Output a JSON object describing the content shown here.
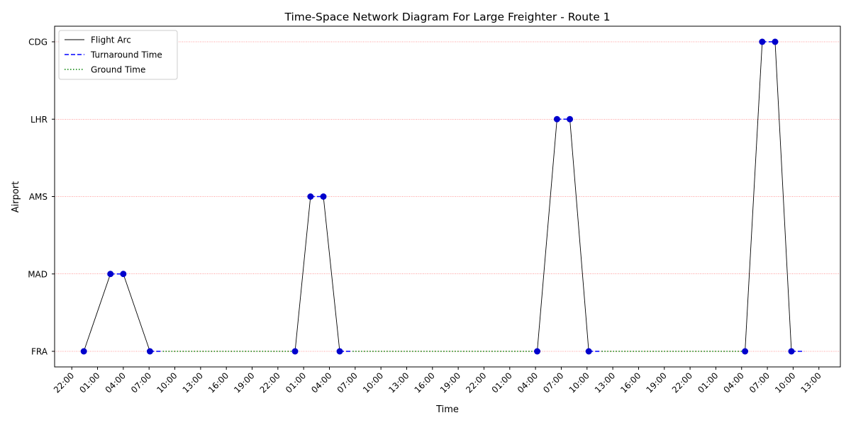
{
  "chart_data": {
    "type": "line",
    "title": "Time-Space Network Diagram For Large Freighter - Route 1",
    "xlabel": "Time",
    "ylabel": "Airport",
    "airports": [
      "FRA",
      "MAD",
      "AMS",
      "LHR",
      "CDG"
    ],
    "x_tick_labels": [
      "22:00",
      "01:00",
      "04:00",
      "07:00",
      "10:00",
      "13:00",
      "16:00",
      "19:00",
      "22:00",
      "01:00",
      "04:00",
      "07:00",
      "10:00",
      "13:00",
      "16:00",
      "19:00",
      "22:00",
      "01:00",
      "04:00",
      "07:00",
      "10:00",
      "13:00",
      "16:00",
      "19:00",
      "22:00",
      "01:00",
      "04:00",
      "07:00",
      "10:00",
      "13:00"
    ],
    "x_tick_hours": [
      0,
      3,
      6,
      9,
      12,
      15,
      18,
      21,
      24,
      27,
      30,
      33,
      36,
      39,
      42,
      45,
      48,
      51,
      54,
      57,
      60,
      63,
      66,
      69,
      72,
      75,
      78,
      81,
      84,
      87
    ],
    "xlim_hours": [
      -2.0,
      89.5
    ],
    "grid": "horizontal dotted red at airports",
    "legend": {
      "position": "top-left",
      "entries": [
        {
          "label": "Flight Arc",
          "style": "solid",
          "color": "#000000"
        },
        {
          "label": "Turnaround Time",
          "style": "dashed",
          "color": "#0000ff"
        },
        {
          "label": "Ground Time",
          "style": "dotted",
          "color": "#008000"
        }
      ]
    },
    "flight_arcs": [
      {
        "from": "FRA",
        "to": "MAD",
        "dep": 1.4,
        "arr": 4.5
      },
      {
        "from": "MAD",
        "to": "FRA",
        "dep": 6.0,
        "arr": 9.1
      },
      {
        "from": "FRA",
        "to": "AMS",
        "dep": 26.0,
        "arr": 27.8
      },
      {
        "from": "AMS",
        "to": "FRA",
        "dep": 29.3,
        "arr": 31.2
      },
      {
        "from": "FRA",
        "to": "LHR",
        "dep": 54.2,
        "arr": 56.5
      },
      {
        "from": "LHR",
        "to": "FRA",
        "dep": 58.0,
        "arr": 60.2
      },
      {
        "from": "FRA",
        "to": "CDG",
        "dep": 78.4,
        "arr": 80.4
      },
      {
        "from": "CDG",
        "to": "FRA",
        "dep": 81.9,
        "arr": 83.8
      }
    ],
    "turnarounds": [
      {
        "airport": "MAD",
        "start": 4.5,
        "end": 6.0
      },
      {
        "airport": "FRA",
        "start": 9.1,
        "end": 10.6
      },
      {
        "airport": "AMS",
        "start": 27.8,
        "end": 29.3
      },
      {
        "airport": "FRA",
        "start": 31.2,
        "end": 32.7
      },
      {
        "airport": "LHR",
        "start": 56.5,
        "end": 58.0
      },
      {
        "airport": "FRA",
        "start": 60.2,
        "end": 61.7
      },
      {
        "airport": "CDG",
        "start": 80.4,
        "end": 81.9
      },
      {
        "airport": "FRA",
        "start": 83.8,
        "end": 85.3
      }
    ],
    "ground_times": [
      {
        "airport": "FRA",
        "start": 10.6,
        "end": 26.0
      },
      {
        "airport": "FRA",
        "start": 32.7,
        "end": 54.2
      },
      {
        "airport": "FRA",
        "start": 61.7,
        "end": 78.4
      }
    ],
    "colors": {
      "flight_arc": "#000000",
      "turnaround": "#0000ff",
      "ground": "#008000",
      "marker": "#0000cc",
      "grid": "#ff0000"
    }
  }
}
